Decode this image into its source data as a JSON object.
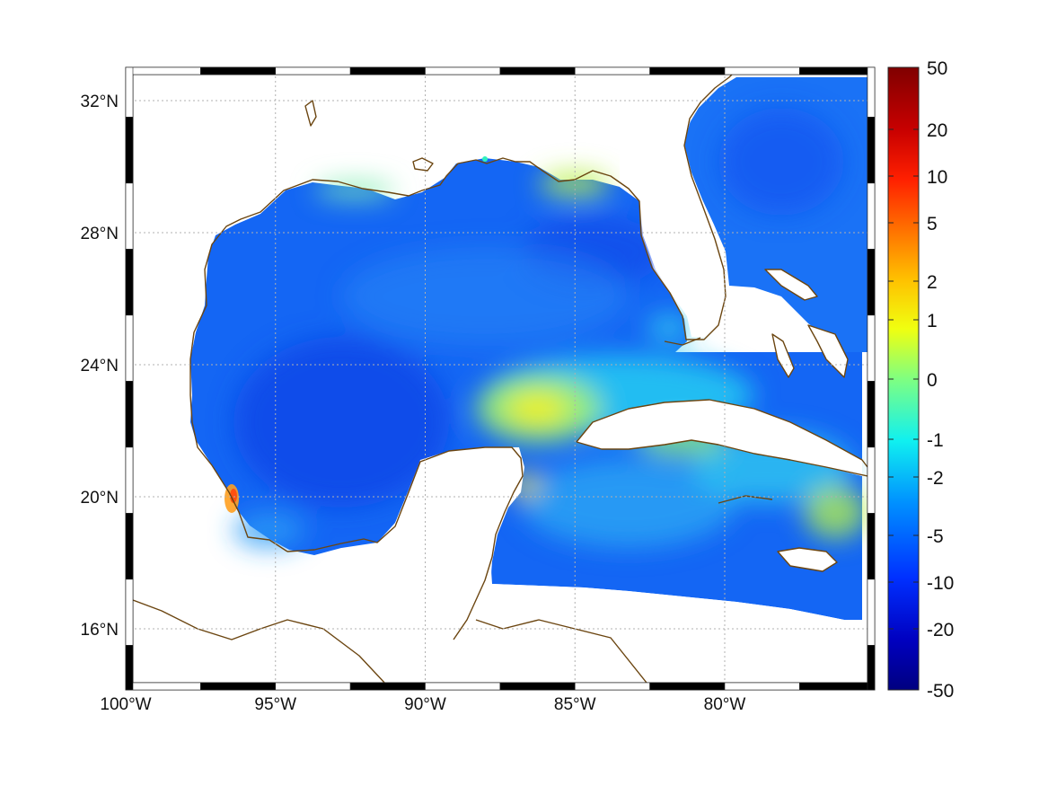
{
  "map": {
    "lon_labels": [
      "100°W",
      "95°W",
      "90°W",
      "85°W",
      "80°W"
    ],
    "lat_labels": [
      "32°N",
      "28°N",
      "24°N",
      "20°N",
      "16°N"
    ],
    "lon_range": [
      -100,
      -75
    ],
    "lat_range": [
      14.5,
      33
    ],
    "grid": true,
    "gridline_color": "#b0b0b0",
    "coastline_color": "#6b4510",
    "land_color": "#ffffff"
  },
  "colorbar": {
    "tick_labels": [
      "50",
      "20",
      "10",
      "5",
      "2",
      "1",
      "0",
      "-1",
      "-2",
      "-5",
      "-10",
      "-20",
      "-50"
    ],
    "colormap": "jet",
    "colors": [
      "#800000",
      "#ff0000",
      "#ff8000",
      "#ffff00",
      "#80ff80",
      "#00ffff",
      "#0080ff",
      "#0000ff",
      "#000080"
    ]
  }
}
